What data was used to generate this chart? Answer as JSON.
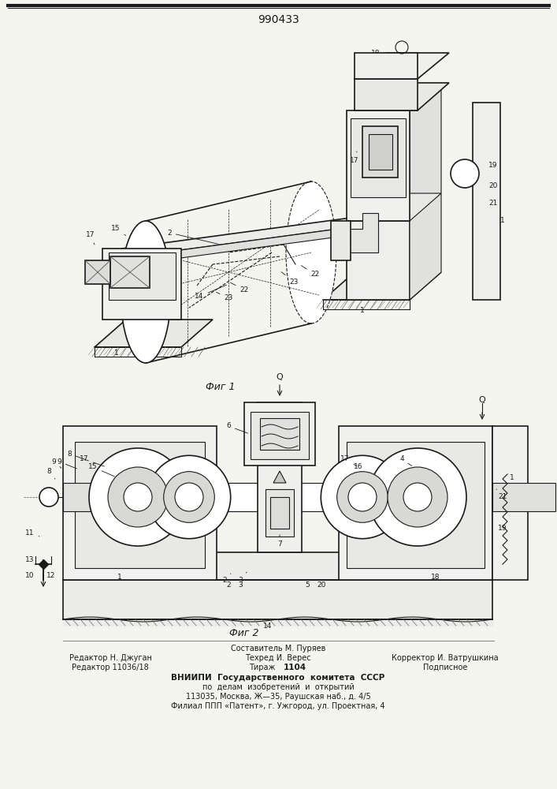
{
  "title": "990433",
  "fig1_label": "Фиг 1",
  "fig2_label": "Фиг 2",
  "footer_line1": "Составитель М. Пуряев",
  "footer_left1": "Редактор Н. Джуган",
  "footer_center1": "Техред И. Верес",
  "footer_right1": "Корректор И. Ватрушкина",
  "footer_left2": "Редактор 11036/18",
  "footer_center2_a": "Тираж ",
  "footer_center2_b": "1104",
  "footer_right2": "Подписное",
  "footer_vniipи": "ВНИИПИ  Государственного  комитета  СССР",
  "footer_po": "по  делам  изобретений  и  открытий",
  "footer_address": "113035, Москва, Ж—35, Раушская наб., д. 4/5",
  "footer_filial": "Филиал ППП «Патент», г. Ужгород, ул. Проектная, 4",
  "bg_color": "#f5f5f0",
  "line_color": "#1a1a1a"
}
